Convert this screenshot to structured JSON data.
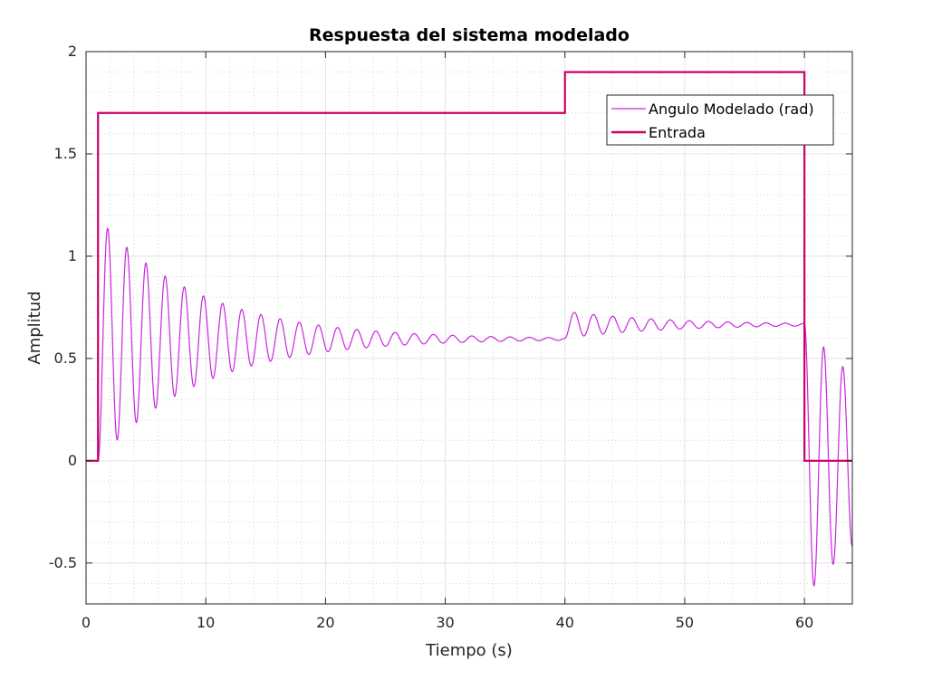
{
  "chart_data": {
    "type": "line",
    "title": "Respuesta del sistema modelado",
    "xlabel": "Tiempo (s)",
    "ylabel": "Amplitud",
    "xlim": [
      0,
      64
    ],
    "ylim": [
      -0.7,
      2
    ],
    "xticks": [
      0,
      10,
      20,
      30,
      40,
      50,
      60
    ],
    "yticks": [
      -0.5,
      0,
      0.5,
      1,
      1.5,
      2
    ],
    "xtick_labels": [
      "0",
      "10",
      "20",
      "30",
      "40",
      "50",
      "60"
    ],
    "ytick_labels": [
      "-0.5",
      "0",
      "0.5",
      "1",
      "1.5",
      "2"
    ],
    "grid": true,
    "minor_grid": true,
    "legend_location": "top-right",
    "series": [
      {
        "name": "Angulo Modelado (rad)",
        "color": "#c926e0",
        "description_of_shape": "damped oscillation",
        "segments": [
          {
            "t_start": 1,
            "t_end": 40,
            "final_value": 0.595,
            "first_peak": 1.13,
            "first_peak_time": 1.9,
            "first_trough": 0.11,
            "period": 1.6
          },
          {
            "t_start": 40,
            "t_end": 60,
            "final_value": 0.665,
            "first_peak": 0.73,
            "first_peak_time": 40.6,
            "first_trough": 0.61,
            "period": 1.6
          },
          {
            "t_start": 60,
            "t_end": 64,
            "first_trough": -0.6,
            "first_trough_time": 60.8,
            "peaks": [
              0.54,
              0.44
            ],
            "troughs": [
              -0.6,
              -0.5
            ],
            "period": 1.6
          }
        ]
      },
      {
        "name": "Entrada",
        "color": "#cc0066",
        "x": [
          0,
          1,
          1,
          40,
          40,
          60,
          60,
          64
        ],
        "y": [
          0,
          0,
          1.7,
          1.7,
          1.9,
          1.9,
          0,
          0
        ]
      }
    ]
  }
}
